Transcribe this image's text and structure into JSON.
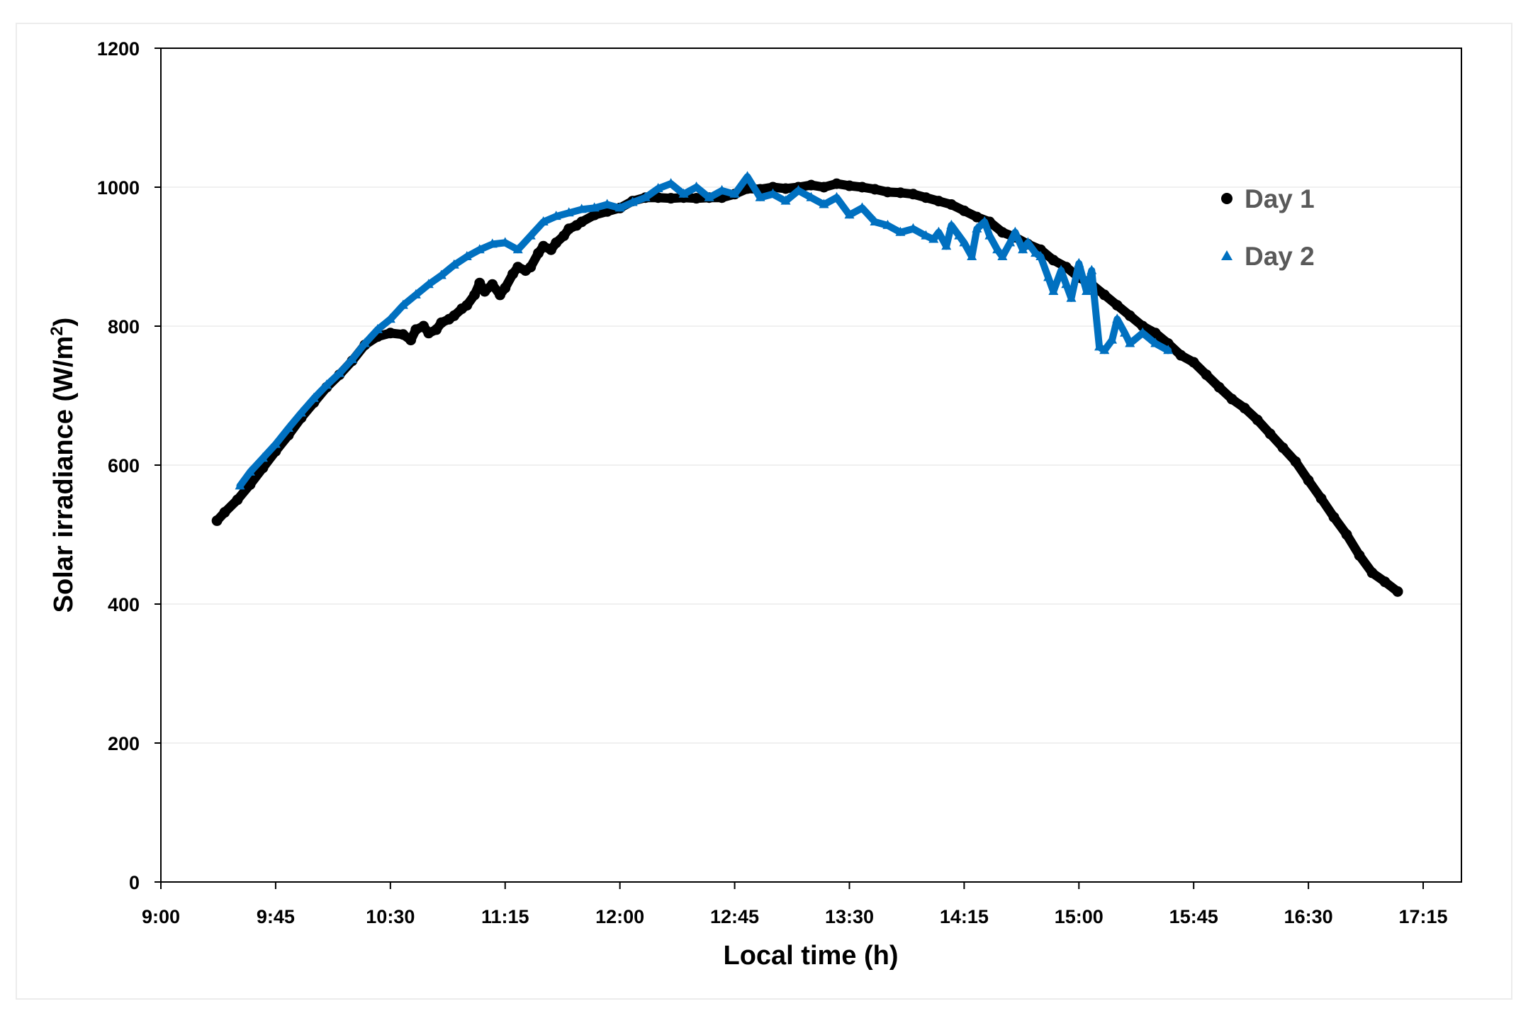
{
  "chart_data": {
    "type": "scatter",
    "title": "",
    "xlabel": "Local time (h)",
    "ylabel_main": "Solar irradiance  (W/m",
    "ylabel_sup": "2",
    "ylabel_close": ")",
    "ylabel": "Solar irradiance  (W/m2)",
    "x_unit": "minutes since 9:00",
    "xlim": [
      0,
      510
    ],
    "ylim": [
      0,
      1200
    ],
    "x_ticks": [
      {
        "value": 0,
        "label": "9:00"
      },
      {
        "value": 45,
        "label": "9:45"
      },
      {
        "value": 90,
        "label": "10:30"
      },
      {
        "value": 135,
        "label": "11:15"
      },
      {
        "value": 180,
        "label": "12:00"
      },
      {
        "value": 225,
        "label": "12:45"
      },
      {
        "value": 270,
        "label": "13:30"
      },
      {
        "value": 315,
        "label": "14:15"
      },
      {
        "value": 360,
        "label": "15:00"
      },
      {
        "value": 405,
        "label": "15:45"
      },
      {
        "value": 450,
        "label": "16:30"
      },
      {
        "value": 495,
        "label": "17:15"
      }
    ],
    "y_ticks": [
      {
        "value": 0,
        "label": "0"
      },
      {
        "value": 200,
        "label": "200"
      },
      {
        "value": 400,
        "label": "400"
      },
      {
        "value": 600,
        "label": "600"
      },
      {
        "value": 800,
        "label": "800"
      },
      {
        "value": 1000,
        "label": "1000"
      },
      {
        "value": 1200,
        "label": "1200"
      }
    ],
    "grid": "horizontal",
    "legend_position": "top-right",
    "series": [
      {
        "name": "Day 1",
        "marker": "circle",
        "color": "#000000",
        "x": [
          22,
          25,
          30,
          35,
          40,
          45,
          50,
          55,
          60,
          65,
          70,
          75,
          80,
          85,
          90,
          95,
          98,
          100,
          103,
          105,
          108,
          110,
          113,
          115,
          118,
          120,
          123,
          125,
          127,
          130,
          133,
          135,
          138,
          140,
          143,
          145,
          148,
          150,
          153,
          155,
          158,
          160,
          163,
          165,
          170,
          175,
          180,
          185,
          190,
          195,
          200,
          205,
          210,
          215,
          220,
          225,
          230,
          235,
          240,
          245,
          250,
          255,
          260,
          265,
          270,
          275,
          280,
          285,
          290,
          295,
          300,
          305,
          310,
          315,
          320,
          325,
          330,
          335,
          340,
          345,
          350,
          355,
          360,
          365,
          370,
          375,
          380,
          385,
          390,
          395,
          400,
          405,
          410,
          415,
          420,
          425,
          430,
          435,
          440,
          445,
          450,
          455,
          460,
          465,
          470,
          475,
          480,
          485
        ],
        "y": [
          520,
          532,
          550,
          572,
          596,
          620,
          643,
          668,
          690,
          712,
          730,
          750,
          773,
          785,
          790,
          788,
          780,
          795,
          800,
          790,
          795,
          805,
          810,
          815,
          825,
          830,
          845,
          862,
          850,
          860,
          845,
          855,
          875,
          885,
          880,
          885,
          905,
          915,
          910,
          920,
          930,
          940,
          945,
          950,
          960,
          965,
          970,
          980,
          985,
          985,
          984,
          985,
          984,
          985,
          985,
          990,
          998,
          997,
          1000,
          998,
          1000,
          1003,
          1000,
          1005,
          1002,
          1000,
          997,
          993,
          992,
          990,
          985,
          980,
          975,
          966,
          957,
          950,
          935,
          928,
          918,
          910,
          895,
          885,
          870,
          860,
          845,
          830,
          815,
          800,
          790,
          775,
          758,
          748,
          730,
          712,
          695,
          682,
          665,
          645,
          625,
          605,
          578,
          552,
          525,
          500,
          470,
          445,
          432,
          418
        ]
      },
      {
        "name": "Day 2",
        "marker": "triangle",
        "color": "#0070c0",
        "x": [
          31,
          35,
          40,
          45,
          50,
          55,
          60,
          65,
          70,
          75,
          80,
          85,
          90,
          95,
          100,
          105,
          110,
          115,
          120,
          125,
          130,
          135,
          140,
          145,
          150,
          155,
          160,
          165,
          170,
          175,
          180,
          185,
          190,
          195,
          200,
          205,
          210,
          215,
          220,
          225,
          230,
          235,
          240,
          245,
          250,
          255,
          260,
          265,
          270,
          275,
          280,
          285,
          290,
          295,
          300,
          303,
          305,
          308,
          310,
          313,
          315,
          318,
          320,
          323,
          325,
          328,
          330,
          333,
          335,
          338,
          340,
          343,
          345,
          348,
          350,
          353,
          355,
          357,
          360,
          363,
          365,
          368,
          370,
          373,
          375,
          378,
          380,
          385,
          390,
          395
        ],
        "y": [
          570,
          590,
          610,
          630,
          653,
          675,
          696,
          715,
          732,
          752,
          775,
          795,
          810,
          830,
          845,
          860,
          873,
          888,
          900,
          910,
          918,
          920,
          910,
          930,
          950,
          958,
          963,
          968,
          970,
          975,
          970,
          978,
          985,
          998,
          1005,
          990,
          1000,
          985,
          995,
          990,
          1015,
          985,
          990,
          980,
          995,
          985,
          975,
          985,
          960,
          970,
          950,
          945,
          935,
          940,
          930,
          925,
          935,
          915,
          945,
          930,
          920,
          900,
          940,
          950,
          930,
          910,
          900,
          920,
          935,
          910,
          920,
          905,
          900,
          870,
          850,
          880,
          860,
          840,
          890,
          850,
          880,
          770,
          765,
          780,
          810,
          790,
          775,
          790,
          775,
          765
        ]
      }
    ]
  }
}
